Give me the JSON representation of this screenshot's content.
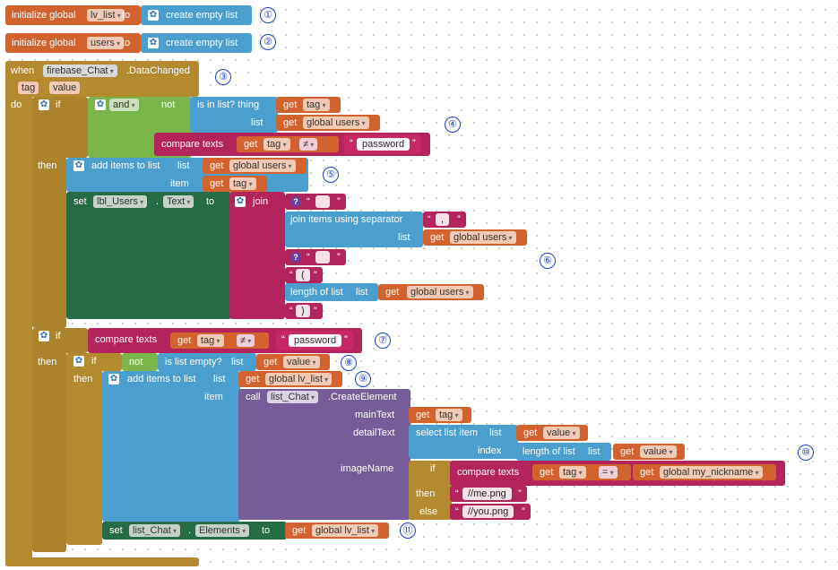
{
  "init1": {
    "label": "initialize global",
    "var": "lv_list",
    "to": "to",
    "value": "create empty list",
    "badge": "①"
  },
  "init2": {
    "label": "initialize global",
    "var": "users",
    "to": "to",
    "value": "create empty list",
    "badge": "②"
  },
  "event": {
    "when": "when",
    "component": "firebase_Chat",
    "event": ".DataChanged",
    "param1": "tag",
    "param2": "value",
    "do": "do",
    "badge": "③"
  },
  "if1": {
    "if": "if",
    "and": "and",
    "not": "not",
    "is_in_list": "is in list? thing",
    "get": "get",
    "tag": "tag",
    "list": "list",
    "global_users": "global users",
    "compare": "compare texts",
    "neq": "≠",
    "password": "password",
    "then": "then",
    "badge4": "④"
  },
  "add1": {
    "label": "add items to list",
    "list": "list",
    "get": "get",
    "global_users": "global users",
    "item": "item",
    "tag": "tag",
    "badge": "⑤"
  },
  "set1": {
    "set": "set",
    "component": "lbl_Users",
    "dot": ".",
    "prop": "Text",
    "to": "to",
    "join": "join",
    "join_sep": "join items using separator",
    "sep_value": ",",
    "list": "list",
    "get": "get",
    "global_users": "global users",
    "open_paren": "(",
    "length_of_list": "length of list",
    "close_paren": ")",
    "badge": "⑥"
  },
  "if2": {
    "if": "if",
    "compare": "compare texts",
    "get": "get",
    "tag": "tag",
    "neq": "≠",
    "password": "password",
    "badge": "⑦"
  },
  "if3": {
    "then": "then",
    "if": "if",
    "not": "not",
    "is_empty": "is list empty?",
    "list": "list",
    "get": "get",
    "value": "value",
    "badge": "⑧"
  },
  "add2": {
    "then": "then",
    "label": "add items to list",
    "list": "list",
    "get": "get",
    "global_lv_list": "global lv_list",
    "item": "item",
    "badge": "⑨"
  },
  "create": {
    "call": "call",
    "component": "list_Chat",
    "method": ".CreateElement",
    "mainText": "mainText",
    "detailText": "detailText",
    "imageName": "imageName",
    "get": "get",
    "tag": "tag",
    "select": "select list item",
    "list": "list",
    "value": "value",
    "index": "index",
    "length_of_list": "length of list",
    "if": "if",
    "compare": "compare texts",
    "eq": "=",
    "my_nickname": "global my_nickname",
    "then": "then",
    "else": "else",
    "me": "//me.png",
    "you": "//you.png",
    "badge": "⑩"
  },
  "set2": {
    "set": "set",
    "component": "list_Chat",
    "dot": ".",
    "prop": "Elements",
    "to": "to",
    "get": "get",
    "global_lv_list": "global lv_list",
    "badge": "⑪"
  }
}
